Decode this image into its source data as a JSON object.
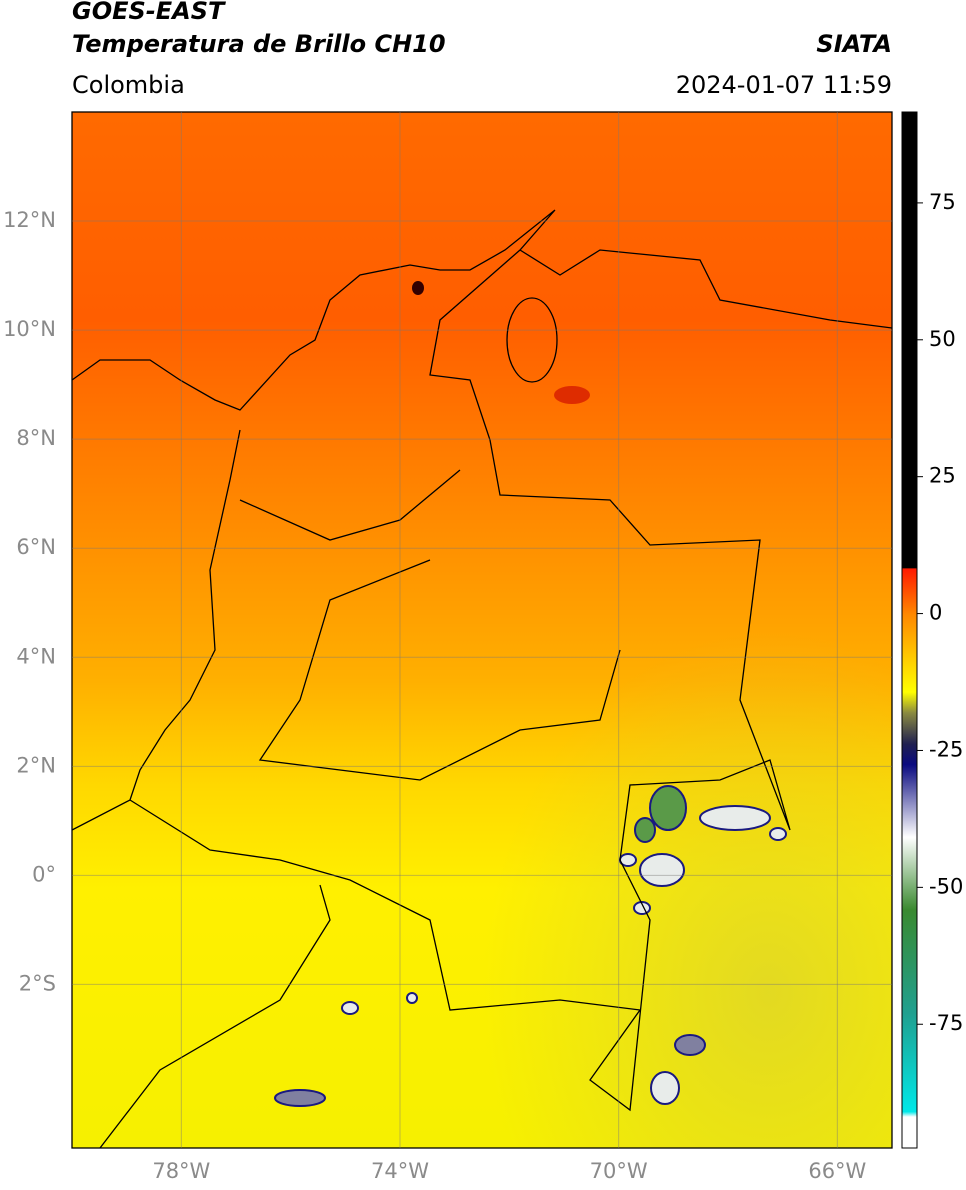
{
  "header": {
    "title": "GOES-EAST",
    "subtitle": "Temperatura de Brillo CH10",
    "region": "Colombia",
    "source": "SIATA",
    "datetime": "2024-01-07 11:59"
  },
  "map": {
    "xlim": [
      -80,
      -65
    ],
    "ylim": [
      -5,
      14
    ],
    "yticks": [
      {
        "value": 12,
        "label": "12°N"
      },
      {
        "value": 10,
        "label": "10°N"
      },
      {
        "value": 8,
        "label": "8°N"
      },
      {
        "value": 6,
        "label": "6°N"
      },
      {
        "value": 4,
        "label": "4°N"
      },
      {
        "value": 2,
        "label": "2°N"
      },
      {
        "value": 0,
        "label": "0°"
      },
      {
        "value": -2,
        "label": "2°S"
      }
    ],
    "xticks": [
      {
        "value": -78,
        "label": "78°W"
      },
      {
        "value": -74,
        "label": "74°W"
      },
      {
        "value": -70,
        "label": "70°W"
      },
      {
        "value": -66,
        "label": "66°W"
      }
    ],
    "grid": true
  },
  "colorbar": {
    "lim": [
      -97.6,
      91.6
    ],
    "ticks": [
      75,
      50,
      25,
      0,
      -25,
      -50,
      -75
    ]
  }
}
